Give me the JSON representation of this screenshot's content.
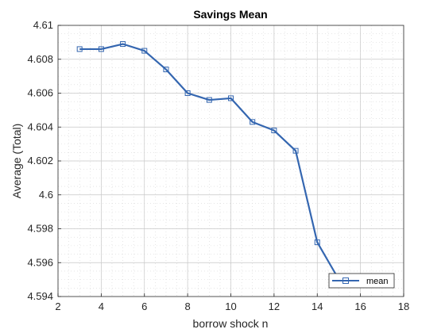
{
  "chart_data": {
    "type": "line",
    "title": "Savings Mean",
    "xlabel": "borrow shock n",
    "ylabel": "Average (Total)",
    "xlim": [
      2,
      18
    ],
    "ylim": [
      4.594,
      4.61
    ],
    "xticks": [
      "2",
      "4",
      "6",
      "8",
      "10",
      "12",
      "14",
      "16",
      "18"
    ],
    "yticks": [
      "4.594",
      "4.596",
      "4.598",
      "4.6",
      "4.602",
      "4.604",
      "4.606",
      "4.608",
      "4.61"
    ],
    "grid": true,
    "minor_grid": true,
    "legend_location": "bottom-right",
    "series": [
      {
        "name": "mean",
        "color": "#3466b0",
        "marker": "square",
        "x": [
          3,
          4,
          5,
          6,
          7,
          8,
          9,
          10,
          11,
          12,
          13,
          14,
          15,
          16,
          17
        ],
        "y": [
          4.6086,
          4.6086,
          4.6089,
          4.6085,
          4.6074,
          4.606,
          4.6056,
          4.6057,
          4.6043,
          4.6038,
          4.6026,
          4.5972,
          4.595,
          4.5947,
          4.595
        ]
      }
    ]
  }
}
